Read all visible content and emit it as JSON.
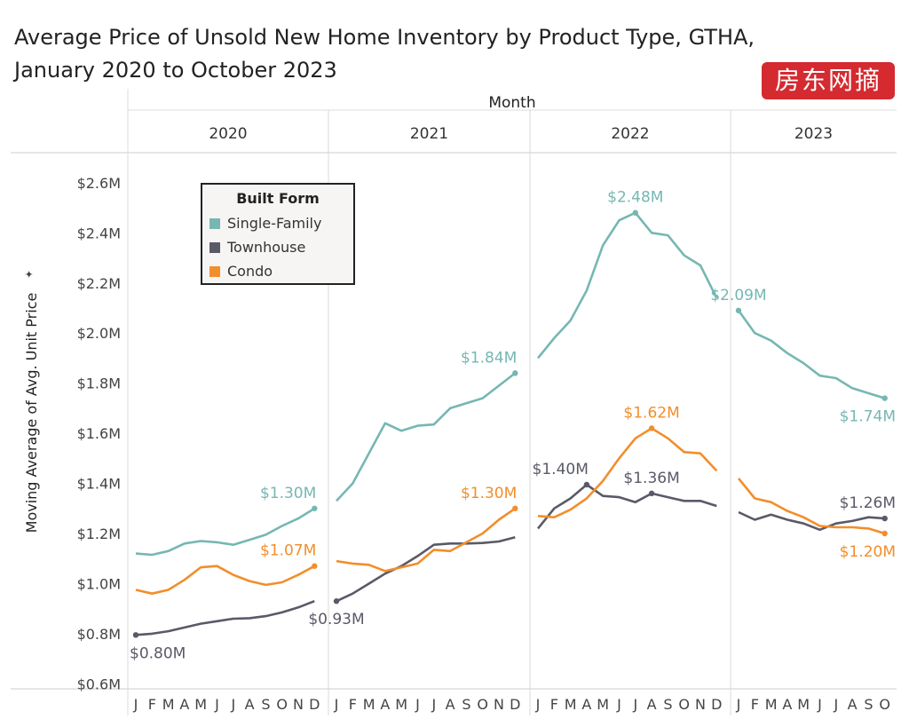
{
  "title_line1": "Average Price of Unsold New Home Inventory by Product Type, GTHA,",
  "title_line2": "January 2020 to October 2023",
  "watermark": "房东网摘",
  "chart_data": {
    "type": "line",
    "title": "Average Price of Unsold New Home Inventory by Product Type, GTHA, January 2020 to October 2023",
    "column_header": "Month",
    "ylabel": "Moving Average of Avg. Unit Price",
    "ylim": [
      0.58,
      2.72
    ],
    "yticks": [
      "$0.6M",
      "$0.8M",
      "$1.0M",
      "$1.2M",
      "$1.4M",
      "$1.6M",
      "$1.8M",
      "$2.0M",
      "$2.2M",
      "$2.4M",
      "$2.6M"
    ],
    "ytick_values": [
      0.6,
      0.8,
      1.0,
      1.2,
      1.4,
      1.6,
      1.8,
      2.0,
      2.2,
      2.4,
      2.6
    ],
    "years": [
      "2020",
      "2021",
      "2022",
      "2023"
    ],
    "month_labels": [
      [
        "J",
        "F",
        "M",
        "A",
        "M",
        "J",
        "J",
        "A",
        "S",
        "O",
        "N",
        "D"
      ],
      [
        "J",
        "F",
        "M",
        "A",
        "M",
        "J",
        "J",
        "A",
        "S",
        "O",
        "N",
        "D"
      ],
      [
        "J",
        "F",
        "M",
        "A",
        "M",
        "J",
        "J",
        "A",
        "S",
        "O",
        "N",
        "D"
      ],
      [
        "J",
        "F",
        "M",
        "A",
        "M",
        "J",
        "J",
        "A",
        "S",
        "O"
      ]
    ],
    "legend_title": "Built Form",
    "legend_position": "top-left",
    "series": [
      {
        "name": "Single-Family",
        "color": "#76b7b2",
        "values": [
          [
            1.12,
            1.115,
            1.13,
            1.16,
            1.17,
            1.165,
            1.155,
            1.175,
            1.195,
            1.23,
            1.26,
            1.3
          ],
          [
            1.33,
            1.4,
            1.52,
            1.64,
            1.61,
            1.63,
            1.635,
            1.7,
            1.72,
            1.74,
            1.79,
            1.84
          ],
          [
            1.9,
            1.98,
            2.05,
            2.17,
            2.35,
            2.45,
            2.48,
            2.4,
            2.39,
            2.31,
            2.27,
            2.14
          ],
          [
            2.09,
            2.0,
            1.97,
            1.92,
            1.88,
            1.83,
            1.82,
            1.78,
            1.76,
            1.74
          ]
        ],
        "labels": [
          {
            "year": 0,
            "month": 11,
            "text": "$1.30M",
            "pos": "above-left"
          },
          {
            "year": 1,
            "month": 11,
            "text": "$1.84M",
            "pos": "above-left"
          },
          {
            "year": 2,
            "month": 6,
            "text": "$2.48M",
            "pos": "above"
          },
          {
            "year": 3,
            "month": 0,
            "text": "$2.09M",
            "pos": "above"
          },
          {
            "year": 3,
            "month": 9,
            "text": "$1.74M",
            "pos": "below"
          }
        ]
      },
      {
        "name": "Townhouse",
        "color": "#595a68",
        "values": [
          [
            0.795,
            0.8,
            0.81,
            0.825,
            0.84,
            0.85,
            0.86,
            0.862,
            0.87,
            0.885,
            0.905,
            0.93
          ],
          [
            0.93,
            0.96,
            1.0,
            1.04,
            1.07,
            1.11,
            1.155,
            1.16,
            1.16,
            1.162,
            1.168,
            1.185
          ],
          [
            1.22,
            1.3,
            1.34,
            1.395,
            1.35,
            1.345,
            1.325,
            1.36,
            1.345,
            1.33,
            1.33,
            1.31
          ],
          [
            1.285,
            1.255,
            1.275,
            1.255,
            1.24,
            1.215,
            1.24,
            1.25,
            1.265,
            1.26
          ]
        ],
        "labels": [
          {
            "year": 0,
            "month": 0,
            "text": "$0.80M",
            "pos": "below"
          },
          {
            "year": 1,
            "month": 0,
            "text": "$0.93M",
            "pos": "below"
          },
          {
            "year": 2,
            "month": 3,
            "text": "$1.40M",
            "pos": "above-left"
          },
          {
            "year": 2,
            "month": 7,
            "text": "$1.36M",
            "pos": "above"
          },
          {
            "year": 3,
            "month": 9,
            "text": "$1.26M",
            "pos": "above"
          }
        ]
      },
      {
        "name": "Condo",
        "color": "#f28e2b",
        "values": [
          [
            0.975,
            0.96,
            0.975,
            1.015,
            1.065,
            1.07,
            1.035,
            1.01,
            0.995,
            1.005,
            1.035,
            1.07
          ],
          [
            1.09,
            1.08,
            1.075,
            1.05,
            1.065,
            1.08,
            1.135,
            1.13,
            1.165,
            1.2,
            1.255,
            1.3
          ],
          [
            1.27,
            1.265,
            1.295,
            1.34,
            1.41,
            1.5,
            1.58,
            1.62,
            1.58,
            1.525,
            1.52,
            1.45
          ],
          [
            1.42,
            1.34,
            1.325,
            1.29,
            1.265,
            1.23,
            1.225,
            1.225,
            1.22,
            1.2
          ]
        ],
        "labels": [
          {
            "year": 0,
            "month": 11,
            "text": "$1.07M",
            "pos": "above-left"
          },
          {
            "year": 1,
            "month": 11,
            "text": "$1.30M",
            "pos": "above-left"
          },
          {
            "year": 2,
            "month": 7,
            "text": "$1.62M",
            "pos": "above"
          },
          {
            "year": 3,
            "month": 9,
            "text": "$1.20M",
            "pos": "below"
          }
        ]
      }
    ]
  }
}
